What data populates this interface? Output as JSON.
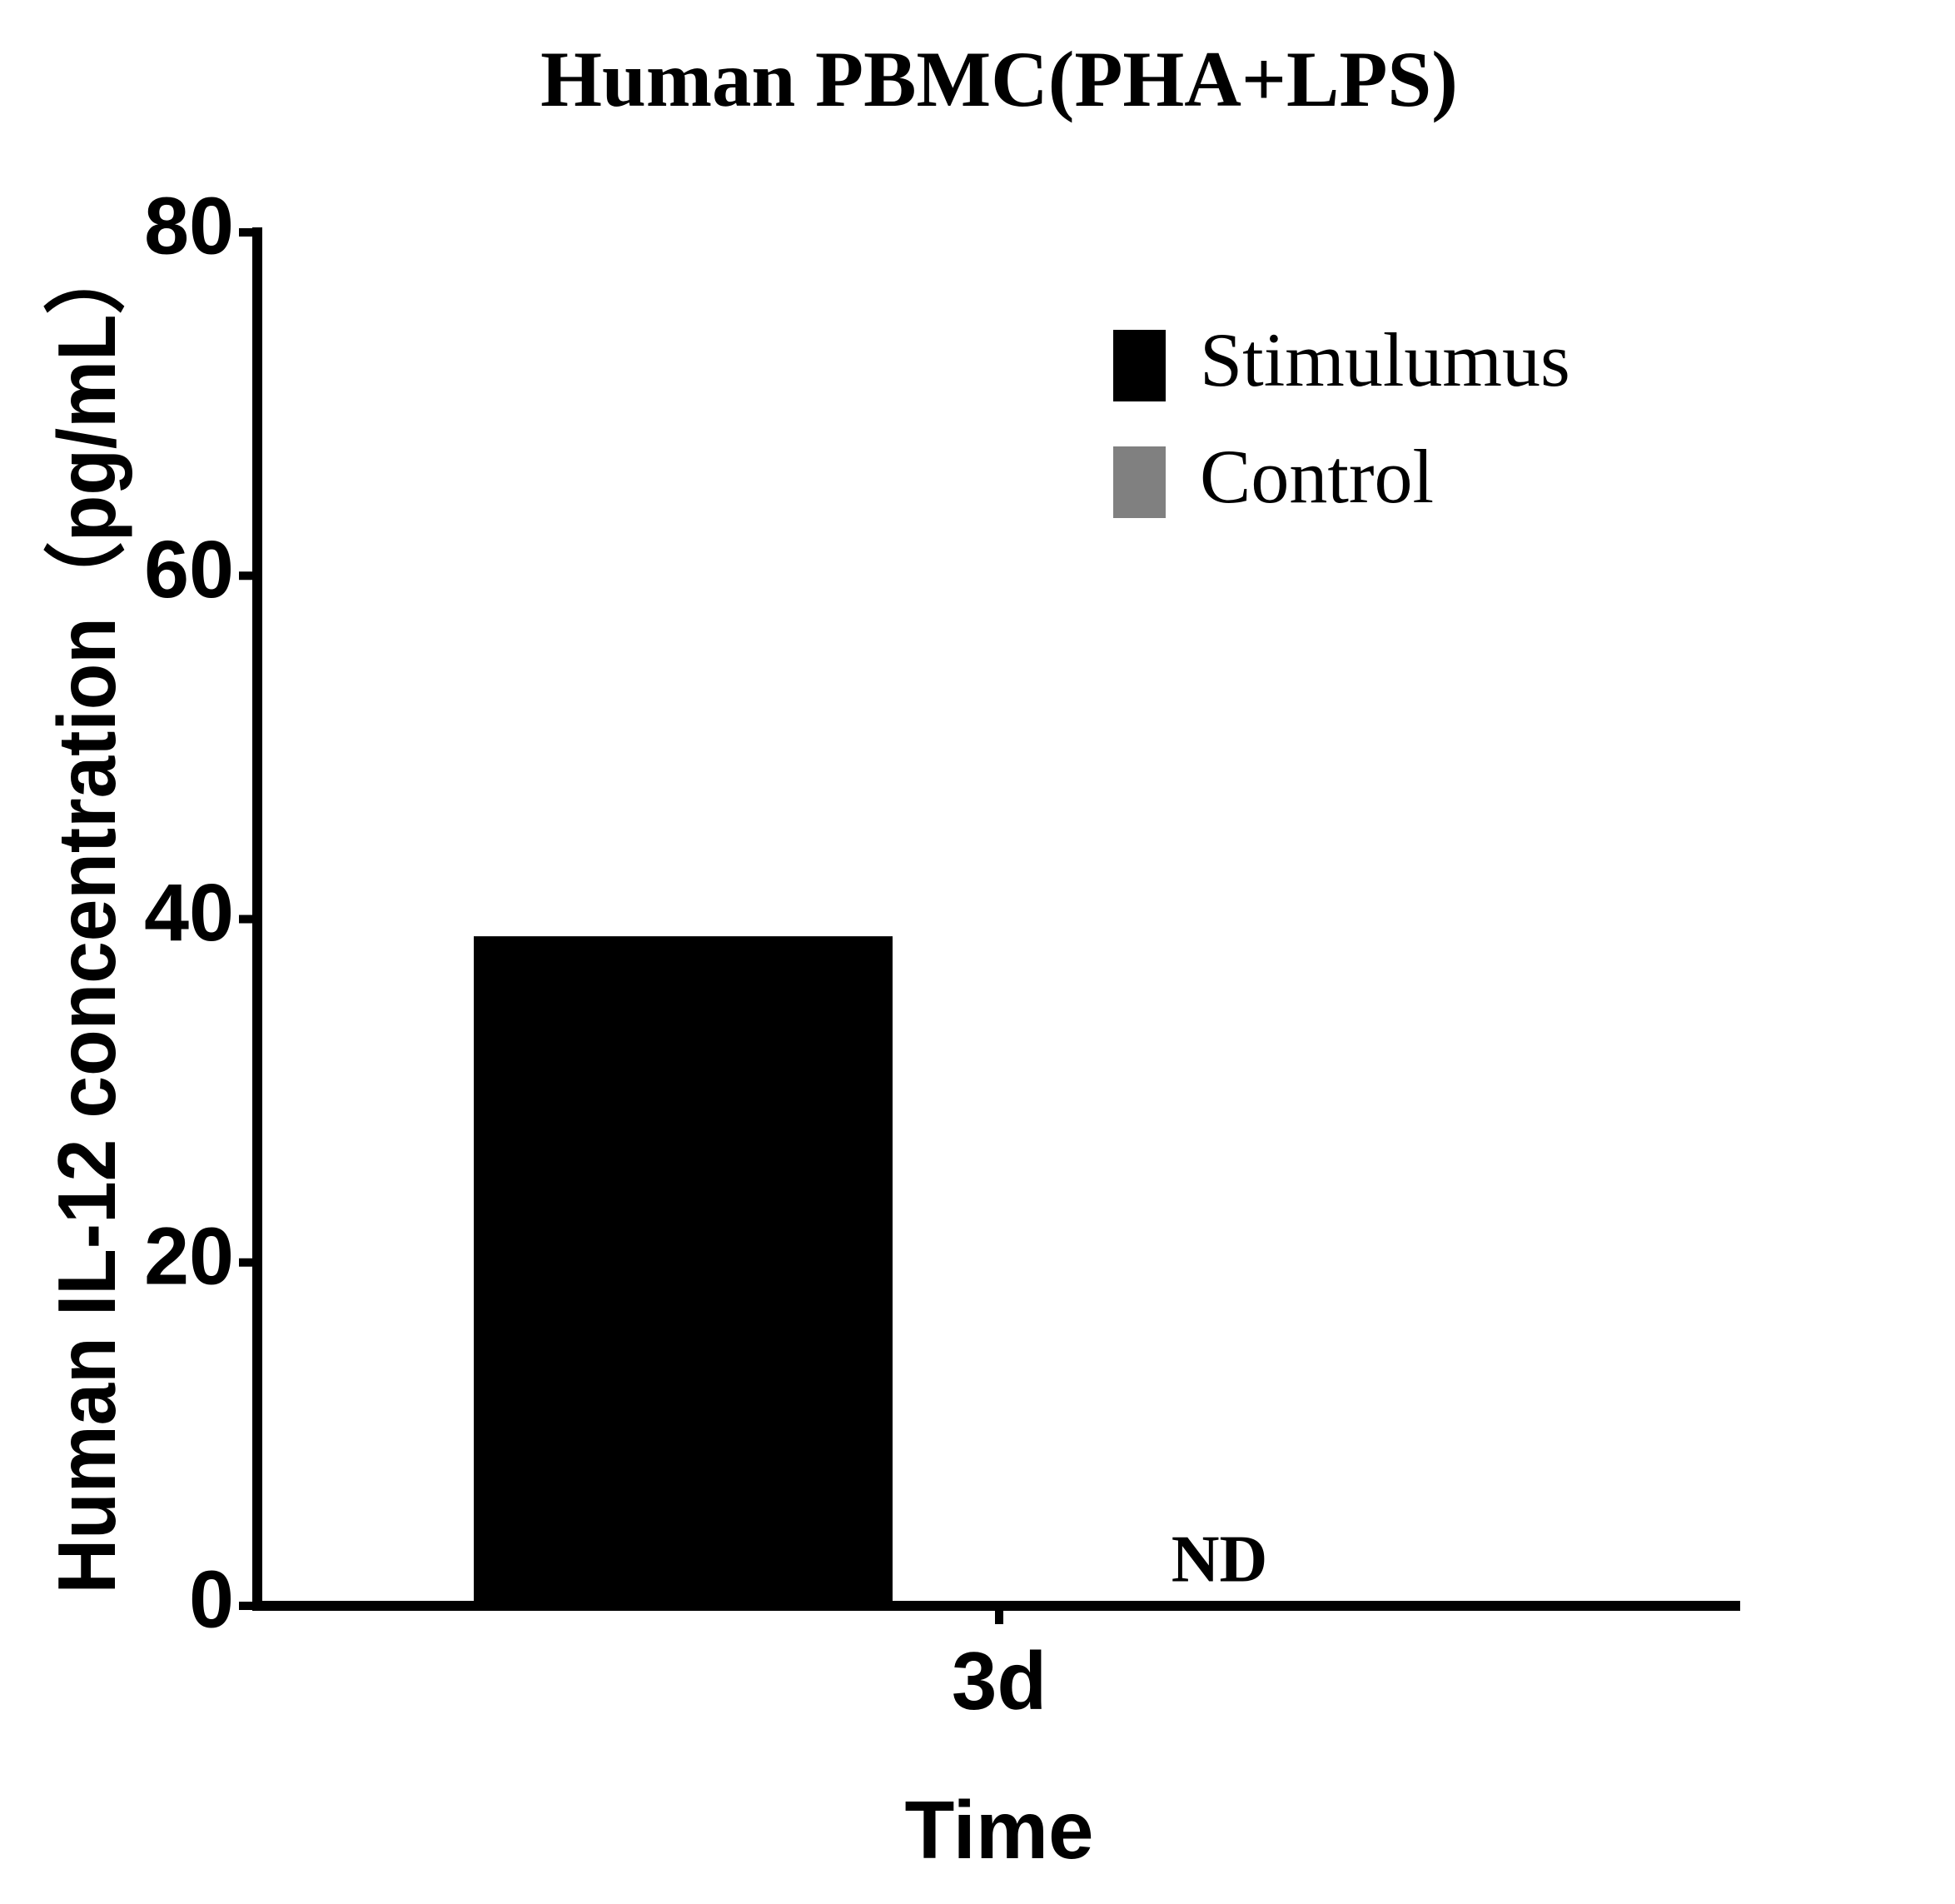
{
  "chart_data": {
    "type": "bar",
    "title": "Human PBMC(PHA+LPS)",
    "x_label": "Time",
    "y_label": "Human IL-12 concentration（pg/mL）",
    "categories": [
      "3d"
    ],
    "series": [
      {
        "name": "Stimulumus",
        "color": "#000000",
        "values": [
          39
        ]
      },
      {
        "name": "Control",
        "color": "#808080",
        "values": [
          null
        ],
        "value_labels": [
          "ND"
        ]
      }
    ],
    "ylim": [
      0,
      80
    ],
    "yticks": [
      0,
      20,
      40,
      60,
      80
    ],
    "legend": "upper right"
  }
}
